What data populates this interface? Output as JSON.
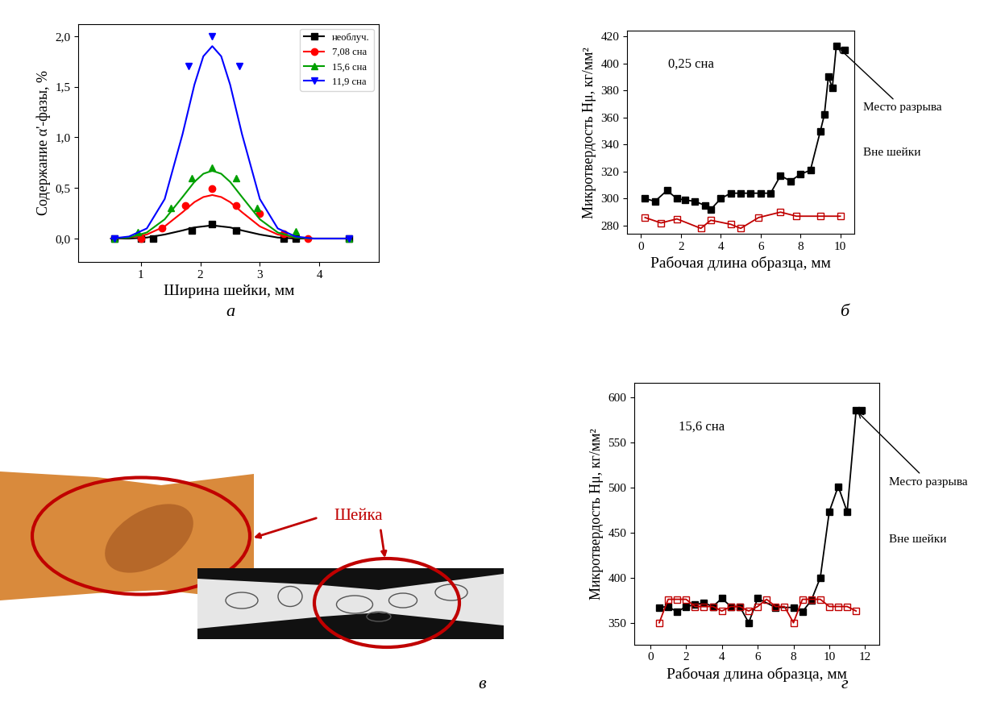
{
  "chart_data": [
    {
      "type": "scatter",
      "panel_label": "а",
      "x_label": "Ширина шейки, мм",
      "y_label": "Содержание α'-фазы, %",
      "xlim": [
        -0.05,
        5.0
      ],
      "ylim": [
        -0.23,
        2.12
      ],
      "xticks": [
        1,
        2,
        3,
        4
      ],
      "yticks": [
        {
          "value": 0,
          "label": "0,0"
        },
        {
          "value": 0.5,
          "label": "0,5"
        },
        {
          "value": 1.0,
          "label": "1,0"
        },
        {
          "value": 1.5,
          "label": "1,5"
        },
        {
          "value": 2.0,
          "label": "2,0"
        }
      ],
      "grid": false,
      "legend": "upper right",
      "series": [
        {
          "name": "необлуч.",
          "color": "#000000",
          "marker": "square",
          "x": [
            0.55,
            1.0,
            1.2,
            1.85,
            2.2,
            2.6,
            3.4,
            3.6,
            4.5
          ],
          "values": [
            0.0,
            0.0,
            0.0,
            0.08,
            0.14,
            0.08,
            0.0,
            0.0,
            0.0
          ],
          "curve": {
            "x": [
              0.5,
              0.8,
              1.1,
              1.4,
              1.7,
              1.9,
              2.05,
              2.2,
              2.35,
              2.5,
              2.7,
              3.0,
              3.3,
              3.6,
              3.9,
              4.2,
              4.5
            ],
            "values": [
              0.0,
              0.0,
              0.01,
              0.04,
              0.08,
              0.11,
              0.12,
              0.13,
              0.12,
              0.11,
              0.08,
              0.04,
              0.01,
              0.0,
              0.0,
              0.0,
              0.0
            ]
          }
        },
        {
          "name": "7,08 сна",
          "color": "#ff0000",
          "marker": "circle",
          "x": [
            1.0,
            1.35,
            1.75,
            2.2,
            2.6,
            3.0,
            3.4,
            3.8
          ],
          "values": [
            0.0,
            0.1,
            0.33,
            0.49,
            0.33,
            0.25,
            0.05,
            0.0
          ],
          "curve": {
            "x": [
              0.5,
              0.8,
              1.1,
              1.4,
              1.7,
              1.9,
              2.05,
              2.2,
              2.35,
              2.5,
              2.7,
              3.0,
              3.3,
              3.6,
              3.9,
              4.2,
              4.5
            ],
            "values": [
              0.0,
              0.01,
              0.04,
              0.12,
              0.26,
              0.36,
              0.41,
              0.43,
              0.41,
              0.36,
              0.26,
              0.12,
              0.04,
              0.01,
              0.0,
              0.0,
              0.0
            ]
          }
        },
        {
          "name": "15,6 сна",
          "color": "#00a000",
          "marker": "triangle_up",
          "x": [
            0.55,
            0.95,
            1.5,
            1.85,
            2.2,
            2.6,
            2.95,
            3.6,
            4.5
          ],
          "values": [
            0.0,
            0.06,
            0.3,
            0.6,
            0.7,
            0.6,
            0.3,
            0.07,
            0.0
          ],
          "curve": {
            "x": [
              0.5,
              0.8,
              1.1,
              1.4,
              1.7,
              1.9,
              2.05,
              2.2,
              2.35,
              2.5,
              2.7,
              3.0,
              3.3,
              3.6,
              3.9,
              4.2,
              4.5
            ],
            "values": [
              0.0,
              0.01,
              0.06,
              0.19,
              0.41,
              0.56,
              0.64,
              0.67,
              0.64,
              0.56,
              0.41,
              0.19,
              0.06,
              0.01,
              0.0,
              0.0,
              0.0
            ]
          }
        },
        {
          "name": "11,9 сна",
          "color": "#0000ff",
          "marker": "triangle_down",
          "x": [
            0.55,
            1.8,
            2.2,
            2.65,
            4.5
          ],
          "values": [
            0.0,
            1.7,
            2.0,
            1.7,
            0.0
          ],
          "curve": {
            "x": [
              0.5,
              0.8,
              1.1,
              1.4,
              1.7,
              1.9,
              2.05,
              2.2,
              2.35,
              2.5,
              2.7,
              3.0,
              3.3,
              3.6,
              3.9,
              4.2,
              4.5
            ],
            "values": [
              0.0,
              0.02,
              0.1,
              0.39,
              1.03,
              1.52,
              1.8,
              1.9,
              1.8,
              1.52,
              1.03,
              0.39,
              0.1,
              0.02,
              0.0,
              0.0,
              0.0
            ]
          }
        }
      ]
    },
    {
      "type": "line",
      "panel_label": "б",
      "x_label": "Рабочая длина образца, мм",
      "y_label": "Микротвердость Hμ, кг/мм²",
      "xlim": [
        -0.7,
        10.7
      ],
      "ylim": [
        274,
        424
      ],
      "xticks": [
        0,
        2,
        4,
        6,
        8,
        10
      ],
      "yticks": [
        280,
        300,
        320,
        340,
        360,
        380,
        400,
        420
      ],
      "grid": false,
      "annotations": {
        "dose": "0,25 сна",
        "rupture": "Место разрыва",
        "outside": "Вне шейки"
      },
      "series": [
        {
          "color": "#000000",
          "marker": "square",
          "x": [
            0.2,
            0.7,
            1.3,
            1.8,
            2.2,
            2.7,
            3.2,
            3.5,
            4.0,
            4.5,
            5.0,
            5.5,
            6.0,
            6.5,
            7.0,
            7.5,
            8.0,
            8.5,
            9.0,
            9.2,
            9.4,
            9.6,
            9.8,
            10.2
          ],
          "values": [
            300,
            298,
            306,
            300,
            299,
            298,
            295,
            292,
            300,
            304,
            304,
            304,
            304,
            304,
            317,
            313,
            318,
            321,
            350,
            362,
            390,
            382,
            413,
            410
          ]
        },
        {
          "color": "#c00000",
          "marker": "open_square",
          "x": [
            0.2,
            1.0,
            1.8,
            3.0,
            3.5,
            4.5,
            5.0,
            5.9,
            7.0,
            7.8,
            9.0,
            10.0
          ],
          "values": [
            286,
            282,
            285,
            278,
            284,
            281,
            278,
            286,
            290,
            287,
            287,
            287
          ]
        }
      ]
    },
    {
      "type": "line",
      "panel_label": "г",
      "x_label": "Рабочая длина образца, мм",
      "y_label": "Микротвердость Hμ, кг/мм²",
      "xlim": [
        -0.9,
        12.8
      ],
      "ylim": [
        326,
        616
      ],
      "xticks": [
        0,
        2,
        4,
        6,
        8,
        10,
        12
      ],
      "yticks": [
        350,
        400,
        450,
        500,
        550,
        600
      ],
      "grid": false,
      "annotations": {
        "dose": "15,6 сна",
        "rupture": "Место разрыва",
        "outside": "Вне шейки"
      },
      "series": [
        {
          "color": "#000000",
          "marker": "square",
          "x": [
            0.5,
            1.0,
            1.5,
            2.0,
            2.5,
            3.0,
            3.5,
            4.0,
            4.5,
            5.0,
            5.5,
            6.0,
            7.0,
            8.0,
            8.5,
            9.0,
            9.5,
            10.0,
            10.5,
            11.0,
            11.5,
            11.8
          ],
          "values": [
            367,
            368,
            362,
            368,
            370,
            372,
            368,
            377,
            368,
            368,
            350,
            377,
            367,
            367,
            362,
            375,
            400,
            473,
            501,
            473,
            585,
            585
          ]
        },
        {
          "color": "#c00000",
          "marker": "open_square",
          "x": [
            0.5,
            1.0,
            1.5,
            2.0,
            2.5,
            3.0,
            3.5,
            4.0,
            4.5,
            5.0,
            5.5,
            6.0,
            6.5,
            7.0,
            7.5,
            8.0,
            8.5,
            9.0,
            9.5,
            10.0,
            10.5,
            11.0,
            11.5
          ],
          "values": [
            350,
            376,
            376,
            376,
            368,
            368,
            368,
            363,
            368,
            368,
            363,
            368,
            376,
            368,
            368,
            350,
            376,
            376,
            376,
            368,
            368,
            368,
            363
          ]
        }
      ]
    }
  ],
  "image_panel": {
    "panel_label": "в",
    "annotation": "Шейка"
  }
}
